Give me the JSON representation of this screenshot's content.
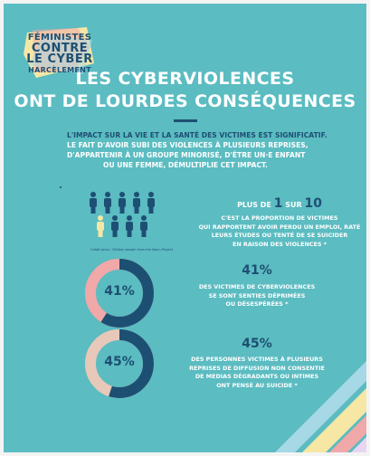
{
  "logo": {
    "line1": "FÉMINISTES",
    "line2": "CONTRE",
    "line3": "LE CYBER",
    "line4": "HARCÈLEMENT"
  },
  "title": {
    "line1": "LES CYBERVIOLENCES",
    "line2": "ONT DE LOURDES CONSÉQUENCES"
  },
  "intro": {
    "line1": "L'IMPACT SUR LA VIE ET LA SANTÉ DES VICTIMES EST SIGNIFICATIF.",
    "line2": "LE FAIT D'AVOIR SUBI DES VIOLENCES À PLUSIEURS REPRISES,",
    "line3": "D'APPARTENIR À UN GROUPE MINORISÉ, D'ÊTRE UN·E ENFANT",
    "line4": "OU UNE FEMME, DÉMULTIPLIE CET IMPACT."
  },
  "stat1": {
    "prefix": "PLUS DE",
    "num1": "1",
    "mid": "SUR",
    "num2": "10",
    "lines": [
      "C'EST LA PROPORTION DE VICTIMES",
      "QUI RAPPORTENT AVOIR PERDU UN EMPLOI, RATÉ",
      "LEURS ÉTUDES OU TENTÉ DE SE SUICIDER",
      "EN RAISON DES VIOLENCES *"
    ],
    "credit": "Crédit picto : William Joseph from the Noun Project"
  },
  "stat2": {
    "value": 41,
    "label": "41%",
    "lines": [
      "DES VICTIMES DE CYBERVIOLENCES",
      "SE SONT SENTIES DÉPRIMÉES",
      "OU DÉSESPÉRÉES *"
    ]
  },
  "stat3": {
    "value": 45,
    "label": "45%",
    "lines": [
      "DES PERSONNES VICTIMES À PLUSIEURS",
      "REPRISES DE DIFFUSION NON CONSENTIE",
      "DE MEDIAS DÉGRADANTS OU INTIMES",
      "ONT PENSÉ AU SUICIDE *"
    ]
  },
  "colors": {
    "background": "#5bbcc1",
    "navy": "#1d4f73",
    "yellow": "#f6e7a5",
    "pink": "#f0a8a8",
    "beige": "#e8c8b8"
  },
  "icons": {
    "people": "person-icon",
    "highlight": "highlighted-person-icon"
  }
}
